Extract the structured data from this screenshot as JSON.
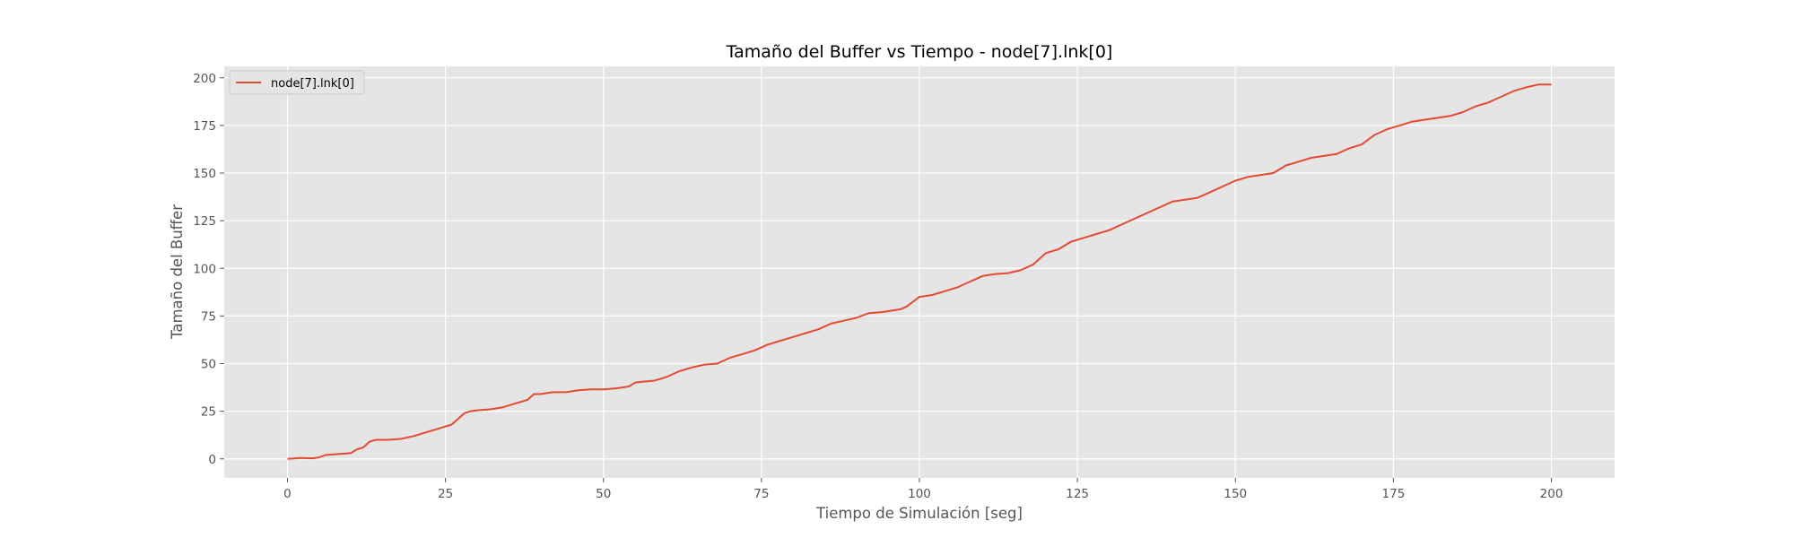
{
  "chart_data": {
    "type": "line",
    "title": "Tamaño del Buffer vs Tiempo - node[7].lnk[0]",
    "xlabel": "Tiempo de Simulación [seg]",
    "ylabel": "Tamaño del Buffer",
    "xlim": [
      -10,
      210
    ],
    "ylim": [
      -10,
      206
    ],
    "xticks": [
      0,
      25,
      50,
      75,
      100,
      125,
      150,
      175,
      200
    ],
    "yticks": [
      0,
      25,
      50,
      75,
      100,
      125,
      150,
      175,
      200
    ],
    "grid": true,
    "legend_position": "top-left",
    "colors": {
      "series": "#e24a33",
      "plot_bg": "#e5e5e5",
      "grid": "#ffffff",
      "tick_text": "#555555"
    },
    "series": [
      {
        "name": "node[7].lnk[0]",
        "x": [
          0,
          2,
          4,
          5,
          6,
          8,
          10,
          11,
          12,
          13,
          14,
          16,
          18,
          20,
          22,
          24,
          26,
          27,
          28,
          29,
          30,
          32,
          34,
          36,
          38,
          39,
          40,
          42,
          44,
          46,
          48,
          50,
          52,
          54,
          55,
          56,
          58,
          60,
          62,
          64,
          66,
          68,
          70,
          72,
          74,
          76,
          78,
          80,
          82,
          84,
          86,
          88,
          90,
          92,
          94,
          96,
          97,
          98,
          100,
          102,
          104,
          106,
          108,
          110,
          112,
          114,
          116,
          118,
          120,
          122,
          124,
          126,
          128,
          130,
          132,
          134,
          136,
          138,
          140,
          142,
          144,
          146,
          148,
          150,
          152,
          154,
          156,
          158,
          160,
          162,
          164,
          166,
          168,
          170,
          172,
          174,
          176,
          178,
          180,
          182,
          184,
          186,
          188,
          190,
          192,
          194,
          196,
          198,
          200
        ],
        "y": [
          0,
          0.5,
          0.3,
          0.8,
          2,
          2.5,
          3,
          5,
          6,
          9,
          10,
          10,
          10.5,
          12,
          14,
          16,
          18,
          21,
          24,
          25,
          25.5,
          26,
          27,
          29,
          31,
          34,
          34,
          35,
          35,
          36,
          36.5,
          36.5,
          37,
          38,
          40,
          40.5,
          41,
          43,
          46,
          48,
          49.5,
          50,
          53,
          55,
          57,
          60,
          62,
          64,
          66,
          68,
          71,
          72.5,
          74,
          76.5,
          77,
          78,
          78.5,
          80,
          85,
          86,
          88,
          90,
          93,
          96,
          97,
          97.5,
          99,
          102,
          108,
          110,
          114,
          116,
          118,
          120,
          123,
          126,
          129,
          132,
          135,
          136,
          137,
          140,
          143,
          146,
          148,
          149,
          150,
          154,
          156,
          158,
          159,
          160,
          163,
          165,
          170,
          173,
          175,
          177,
          178,
          179,
          180,
          182,
          185,
          187,
          190,
          193,
          195,
          196.5,
          196.5
        ]
      }
    ]
  }
}
